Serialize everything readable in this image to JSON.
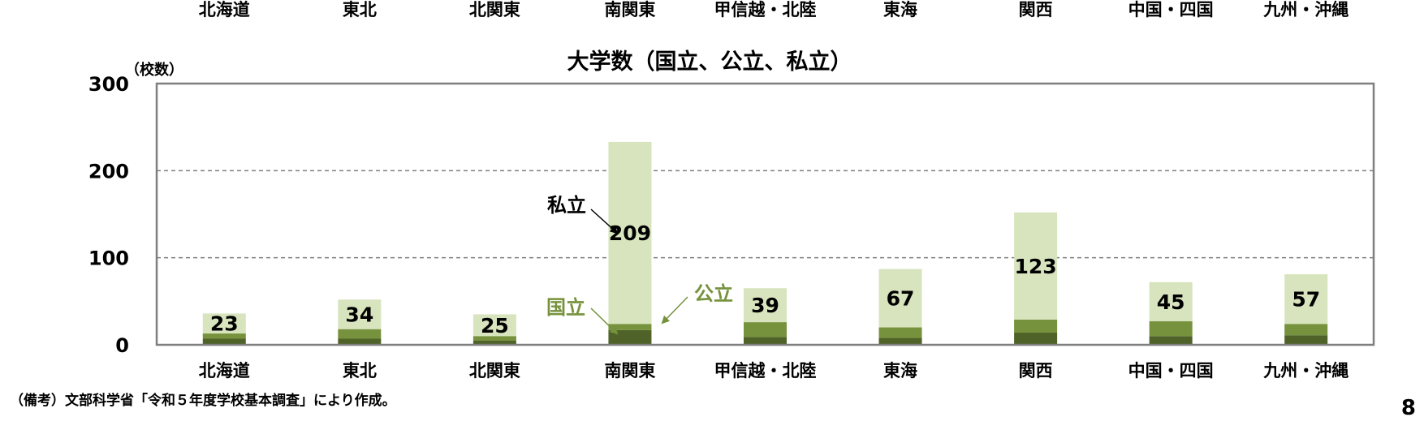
{
  "chart_data": {
    "type": "bar",
    "stacked": true,
    "title": "大学数（国立、公立、私立）",
    "ylabel": "（校数）",
    "ylim": [
      0,
      300
    ],
    "yticks": [
      0,
      100,
      200,
      300
    ],
    "grid": "dashed horizontal at 100 and 200",
    "top_categories": [
      "北海道",
      "東北",
      "北関東",
      "南関東",
      "甲信越・北陸",
      "東海",
      "関西",
      "中国・四国",
      "九州・沖縄"
    ],
    "categories": [
      "北海道",
      "東北",
      "北関東",
      "南関東",
      "甲信越・北陸",
      "東海",
      "関西",
      "中国・四国",
      "九州・沖縄"
    ],
    "series": [
      {
        "name": "国立",
        "color": "#4f6228",
        "values": [
          7,
          7,
          5,
          17,
          9,
          8,
          14,
          10,
          11
        ]
      },
      {
        "name": "公立",
        "color": "#76923c",
        "values": [
          6,
          11,
          5,
          7,
          17,
          12,
          15,
          17,
          13
        ]
      },
      {
        "name": "私立",
        "color": "#d7e4bd",
        "values": [
          23,
          34,
          25,
          209,
          39,
          67,
          123,
          45,
          57
        ],
        "labels": [
          "23",
          "34",
          "25",
          "209",
          "39",
          "67",
          "123",
          "45",
          "57"
        ]
      }
    ],
    "annotations": [
      {
        "text": "私立",
        "color": "#000000"
      },
      {
        "text": "公立",
        "color": "#76923c"
      },
      {
        "text": "国立",
        "color": "#76923c"
      }
    ]
  },
  "note": "（備考）文部科学省「令和５年度学校基本調査」により作成。",
  "page_number": "8"
}
